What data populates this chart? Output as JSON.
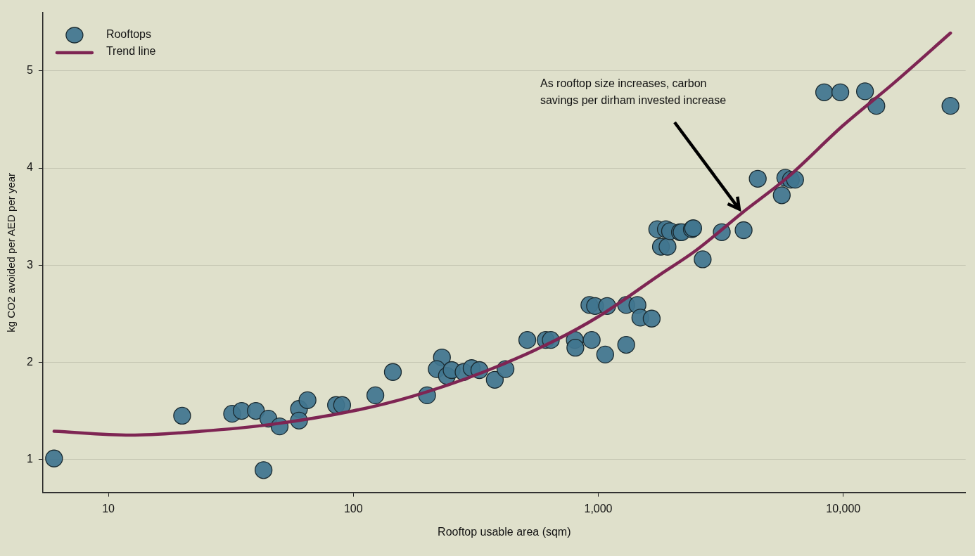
{
  "chart_data": {
    "type": "scatter",
    "xlabel": "Rooftop usable area (sqm)",
    "ylabel": "kg CO2 avoided per AED per year",
    "log": "x",
    "xlim": [
      5.4,
      31600
    ],
    "xticks": [
      10,
      100,
      {
        "value": 1000,
        "label": "1,000"
      },
      {
        "value": 10000,
        "label": "10,000"
      }
    ],
    "ylim": [
      0.66,
      5.6
    ],
    "yticks": [
      1,
      2,
      3,
      4,
      5
    ],
    "grid": "y",
    "legend": "top left",
    "marker": "circle",
    "annotations": [
      "As rooftop size increases, carbon savings per dirham invested increase"
    ],
    "series": [
      {
        "name": "Rooftops",
        "color": "#41758f",
        "x": [
          6,
          20,
          32,
          35,
          40,
          45,
          43,
          50,
          60,
          60,
          65,
          85,
          90,
          123,
          145,
          200,
          230,
          219,
          241,
          252,
          282,
          304,
          327,
          378,
          418,
          513,
          610,
          640,
          802,
          806,
          940,
          920,
          970,
          1067,
          1087,
          1300,
          1300,
          1445,
          1485,
          1652,
          1741,
          1802,
          1888,
          1917,
          1963,
          2155,
          2190,
          2410,
          2440,
          2668,
          3192,
          3920,
          4477,
          5610,
          5800,
          6112,
          6360,
          8360,
          9730,
          12270,
          13650,
          27400
        ],
        "values": [
          1.01,
          1.45,
          1.47,
          1.5,
          1.5,
          1.42,
          0.89,
          1.34,
          1.52,
          1.4,
          1.61,
          1.56,
          1.56,
          1.66,
          1.9,
          1.66,
          2.05,
          1.93,
          1.86,
          1.92,
          1.9,
          1.94,
          1.92,
          1.82,
          1.93,
          2.23,
          2.23,
          2.23,
          2.23,
          2.15,
          2.23,
          2.59,
          2.58,
          2.08,
          2.58,
          2.59,
          2.18,
          2.59,
          2.46,
          2.45,
          3.37,
          3.19,
          3.37,
          3.19,
          3.35,
          3.34,
          3.34,
          3.37,
          3.38,
          3.06,
          3.34,
          3.36,
          3.89,
          3.72,
          3.9,
          3.88,
          3.88,
          4.78,
          4.78,
          4.79,
          4.64,
          4.64
        ]
      },
      {
        "name": "Trend line",
        "type": "line",
        "color": "#7e2553",
        "marker": "none",
        "x": [
          6,
          12.3,
          23.9,
          46,
          100,
          174,
          340,
          660,
          1000,
          1780,
          2500,
          3870,
          5900,
          10000,
          16000,
          27400
        ],
        "values": [
          1.29,
          1.25,
          1.29,
          1.36,
          1.5,
          1.65,
          1.9,
          2.22,
          2.47,
          2.9,
          3.15,
          3.54,
          3.9,
          4.44,
          4.87,
          5.39
        ]
      }
    ]
  }
}
